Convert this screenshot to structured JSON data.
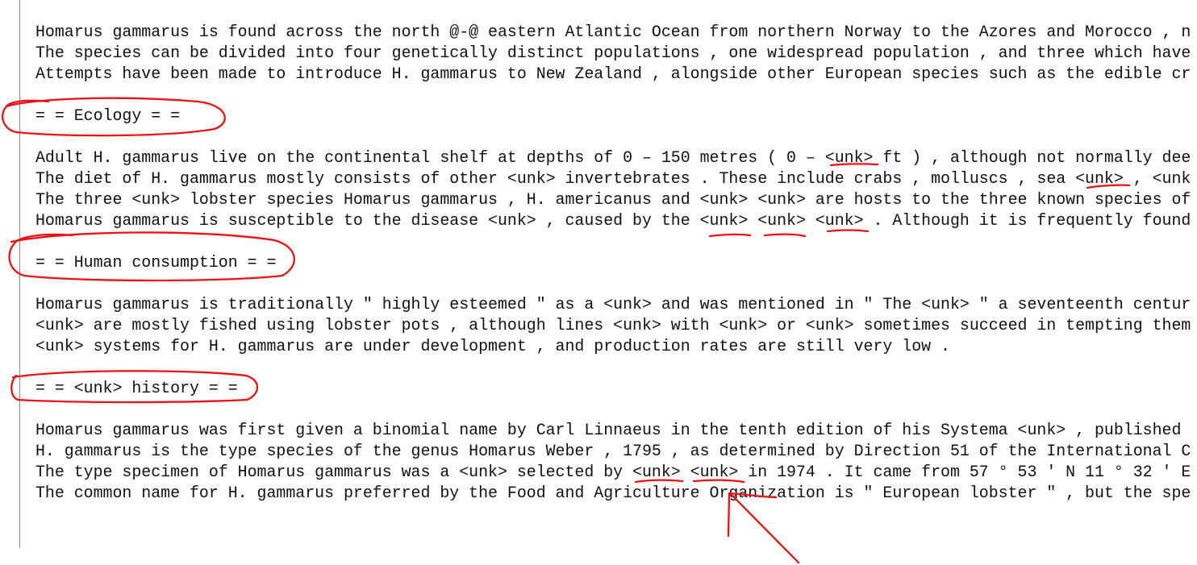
{
  "editor": {
    "lines": [
      "Homarus gammarus is found across the north @-@ eastern Atlantic Ocean from northern Norway to the Azores and Morocco , n",
      "The species can be divided into four genetically distinct populations , one widespread population , and three which have",
      "Attempts have been made to introduce H. gammarus to New Zealand , alongside other European species such as the edible cr",
      "",
      "= = Ecology = =",
      "",
      "Adult H. gammarus live on the continental shelf at depths of 0 – 150 metres ( 0 – <unk> ft ) , although not normally dee",
      "The diet of H. gammarus mostly consists of other <unk> invertebrates . These include crabs , molluscs , sea <unk> , <unk",
      "The three <unk> lobster species Homarus gammarus , H. americanus and <unk> <unk> are hosts to the three known species of",
      "Homarus gammarus is susceptible to the disease <unk> , caused by the <unk> <unk> <unk> . Although it is frequently found",
      "",
      "= = Human consumption = =",
      "",
      "Homarus gammarus is traditionally \" highly esteemed \" as a <unk> and was mentioned in \" The <unk> \" a seventeenth centur",
      "<unk> are mostly fished using lobster pots , although lines <unk> with <unk> or <unk> sometimes succeed in tempting them",
      "<unk> systems for H. gammarus are under development , and production rates are still very low .",
      "",
      "= = <unk> history = =",
      "",
      "Homarus gammarus was first given a binomial name by Carl Linnaeus in the tenth edition of his Systema <unk> , published",
      "H. gammarus is the type species of the genus Homarus Weber , 1795 , as determined by Direction 51 of the International C",
      "The type specimen of Homarus gammarus was a <unk> selected by <unk> <unk> in 1974 . It came from 57 ° 53 ′ N 11 ° 32 ′ E",
      "The common name for H. gammarus preferred by the Food and Agriculture Organization is \" European lobster \" , but the spe"
    ]
  },
  "annotations": {
    "color": "#ee1111"
  }
}
